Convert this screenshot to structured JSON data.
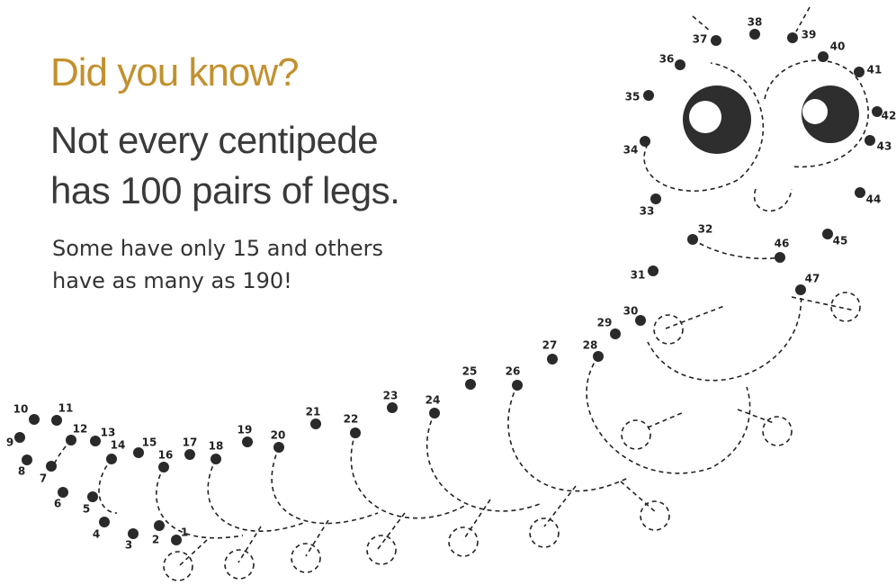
{
  "header": {
    "kicker": "Did you know?",
    "title_lines": [
      "Not every centipede",
      "has 100 pairs of legs."
    ],
    "body_lines": [
      "Some have only 15 and others",
      "have as many as 190!"
    ]
  },
  "dots": [
    "1",
    "2",
    "3",
    "4",
    "5",
    "6",
    "7",
    "8",
    "9",
    "10",
    "11",
    "12",
    "13",
    "14",
    "15",
    "16",
    "17",
    "18",
    "19",
    "20",
    "21",
    "22",
    "23",
    "24",
    "25",
    "26",
    "27",
    "28",
    "29",
    "30",
    "31",
    "32",
    "33",
    "34",
    "35",
    "36",
    "37",
    "38",
    "39",
    "40",
    "41",
    "42",
    "43",
    "44",
    "45",
    "46",
    "47"
  ]
}
